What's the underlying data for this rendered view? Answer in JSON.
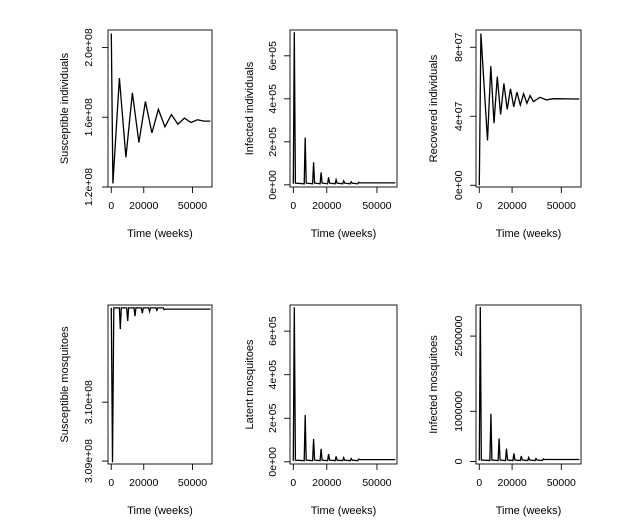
{
  "chart_data": [
    {
      "type": "line",
      "xlabel": "Time (weeks)",
      "ylabel": "Susceptible individuals",
      "xlim": [
        -2000,
        62000
      ],
      "ylim": [
        120000000.0,
        210000000.0
      ],
      "xticks": [
        0,
        20000,
        50000
      ],
      "xtick_labels": [
        "0",
        "20000",
        "50000"
      ],
      "yticks": [
        120000000.0,
        160000000.0,
        200000000.0
      ],
      "ytick_labels": [
        "1.2e+08",
        "1.6e+08",
        "2.0e+08"
      ],
      "series": [
        {
          "name": "Susceptible individuals",
          "x": [
            0,
            1000,
            5000,
            9000,
            13000,
            17000,
            21000,
            25000,
            29000,
            33000,
            37000,
            41000,
            45000,
            49000,
            53000,
            57000,
            61000
          ],
          "values": [
            208000000.0,
            122000000.0,
            182500000.0,
            137000000.0,
            174000000.0,
            145500000.0,
            169000000.0,
            151000000.0,
            164500000.0,
            154500000.0,
            161500000.0,
            156000000.0,
            159500000.0,
            157000000.0,
            158500000.0,
            157800000.0,
            157800000.0
          ]
        }
      ]
    },
    {
      "type": "line",
      "xlabel": "Time (weeks)",
      "ylabel": "Infected individuals",
      "xlim": [
        -2000,
        62000
      ],
      "ylim": [
        -10000,
        720000.0
      ],
      "xticks": [
        0,
        20000,
        50000
      ],
      "xtick_labels": [
        "0",
        "20000",
        "50000"
      ],
      "yticks": [
        0,
        200000.0,
        400000.0,
        600000.0
      ],
      "ytick_labels": [
        "0e+00",
        "2e+05",
        "4e+05",
        "6e+05"
      ],
      "series": [
        {
          "name": "Infected individuals",
          "x": [
            0,
            600,
            1200,
            6500,
            7100,
            7700,
            11500,
            12100,
            12700,
            16000,
            16600,
            17200,
            20500,
            21100,
            21700,
            25000,
            25600,
            26200,
            29500,
            30100,
            30700,
            34000,
            34600,
            35200,
            38500,
            39100,
            39700,
            61000
          ],
          "values": [
            5000,
            710000.0,
            8000,
            5000,
            220000.0,
            8000,
            5000,
            105000.0,
            8000,
            5000,
            58000.0,
            8000,
            5000,
            35000.0,
            8000,
            5000,
            24000.0,
            8000,
            5000,
            18000.0,
            8000,
            5000,
            14000.0,
            8000,
            5000,
            12000.0,
            9000,
            9000
          ]
        }
      ]
    },
    {
      "type": "line",
      "xlabel": "Time (weeks)",
      "ylabel": "Recovered individuals",
      "xlim": [
        -2000,
        62000
      ],
      "ylim": [
        -1000000.0,
        90000000.0
      ],
      "xticks": [
        0,
        20000,
        50000
      ],
      "xtick_labels": [
        "0",
        "20000",
        "50000"
      ],
      "yticks": [
        0,
        40000000.0,
        80000000.0
      ],
      "ytick_labels": [
        "0e+00",
        "4e+07",
        "8e+07"
      ],
      "series": [
        {
          "name": "Recovered individuals",
          "x": [
            0,
            1000,
            5000,
            7000,
            9000,
            11000,
            13000,
            15000,
            17000,
            19000,
            21000,
            23000,
            25000,
            27000,
            29000,
            31000,
            33000,
            37000,
            41000,
            45000,
            61000
          ],
          "values": [
            0,
            88000000.0,
            26000000.0,
            69000000.0,
            36000000.0,
            63000000.0,
            41000000.0,
            59000000.0,
            44000000.0,
            56000000.0,
            45500000.0,
            54000000.0,
            46500000.0,
            53000000.0,
            47500000.0,
            52000000.0,
            48500000.0,
            51000000.0,
            49500000.0,
            50200000.0,
            50000000.0
          ]
        }
      ]
    },
    {
      "type": "line",
      "xlabel": "Time (weeks)",
      "ylabel": "Susceptible mosquitoes",
      "xlim": [
        -2000,
        62000
      ],
      "ylim": [
        308950000.0,
        311650000.0
      ],
      "xticks": [
        0,
        20000,
        50000
      ],
      "xtick_labels": [
        "0",
        "20000",
        "50000"
      ],
      "yticks": [
        309000000.0,
        310000000.0
      ],
      "ytick_labels": [
        "3.09e+08",
        "3.10e+08"
      ],
      "series": [
        {
          "name": "Susceptible mosquitoes",
          "x": [
            0,
            800,
            1600,
            5000,
            5600,
            6200,
            9500,
            10100,
            10700,
            14000,
            14600,
            15200,
            18500,
            19100,
            19700,
            23000,
            23600,
            24200,
            27500,
            28100,
            28700,
            32000,
            32600,
            33200,
            61000
          ],
          "values": [
            311600000.0,
            308980000.0,
            311600000.0,
            311600000.0,
            311240000.0,
            311600000.0,
            311600000.0,
            311380000.0,
            311600000.0,
            311600000.0,
            311460000.0,
            311600000.0,
            311600000.0,
            311510000.0,
            311600000.0,
            311600000.0,
            311540000.0,
            311600000.0,
            311600000.0,
            311560000.0,
            311600000.0,
            311600000.0,
            311570000.0,
            311580000.0,
            311580000.0
          ]
        }
      ]
    },
    {
      "type": "line",
      "xlabel": "Time (weeks)",
      "ylabel": "Latent mosquitoes",
      "xlim": [
        -2000,
        62000
      ],
      "ylim": [
        -10000,
        720000.0
      ],
      "xticks": [
        0,
        20000,
        50000
      ],
      "xtick_labels": [
        "0",
        "20000",
        "50000"
      ],
      "yticks": [
        0,
        200000.0,
        400000.0,
        600000.0
      ],
      "ytick_labels": [
        "0e+00",
        "2e+05",
        "4e+05",
        "6e+05"
      ],
      "series": [
        {
          "name": "Latent mosquitoes",
          "x": [
            0,
            600,
            1200,
            6500,
            7100,
            7700,
            11500,
            12100,
            12700,
            16000,
            16600,
            17200,
            20500,
            21100,
            21700,
            25000,
            25600,
            26200,
            29500,
            30100,
            30700,
            34000,
            34600,
            35200,
            38500,
            39100,
            39700,
            61000
          ],
          "values": [
            5000,
            710000.0,
            8000,
            5000,
            215000.0,
            8000,
            5000,
            105000.0,
            8000,
            5000,
            60000.0,
            8000,
            5000,
            36000.0,
            8000,
            5000,
            25000.0,
            8000,
            5000,
            19000.0,
            8000,
            5000,
            15000.0,
            8000,
            5000,
            12000.0,
            10000,
            10000
          ]
        }
      ]
    },
    {
      "type": "line",
      "xlabel": "Time (weeks)",
      "ylabel": "Infected mosquitoes",
      "xlim": [
        -2000,
        62000
      ],
      "ylim": [
        -50000,
        3120000.0
      ],
      "xticks": [
        0,
        20000,
        50000
      ],
      "xtick_labels": [
        "0",
        "20000",
        "50000"
      ],
      "yticks": [
        0,
        1000000,
        2500000
      ],
      "ytick_labels": [
        "0",
        "1000000",
        "2500000"
      ],
      "series": [
        {
          "name": "Infected mosquitoes",
          "x": [
            0,
            600,
            1200,
            6500,
            7100,
            7700,
            11500,
            12100,
            12700,
            16000,
            16600,
            17200,
            20500,
            21100,
            21700,
            25000,
            25600,
            26200,
            29500,
            30100,
            30700,
            34000,
            34600,
            35200,
            38500,
            39100,
            39700,
            61000
          ],
          "values": [
            20000,
            3080000.0,
            30000,
            20000,
            950000.0,
            30000,
            20000,
            460000.0,
            30000,
            20000,
            260000.0,
            30000,
            20000,
            160000.0,
            30000,
            20000,
            110000.0,
            30000,
            20000,
            80000.0,
            30000,
            20000,
            60000.0,
            30000,
            20000,
            50000.0,
            40000,
            40000
          ]
        }
      ]
    }
  ]
}
